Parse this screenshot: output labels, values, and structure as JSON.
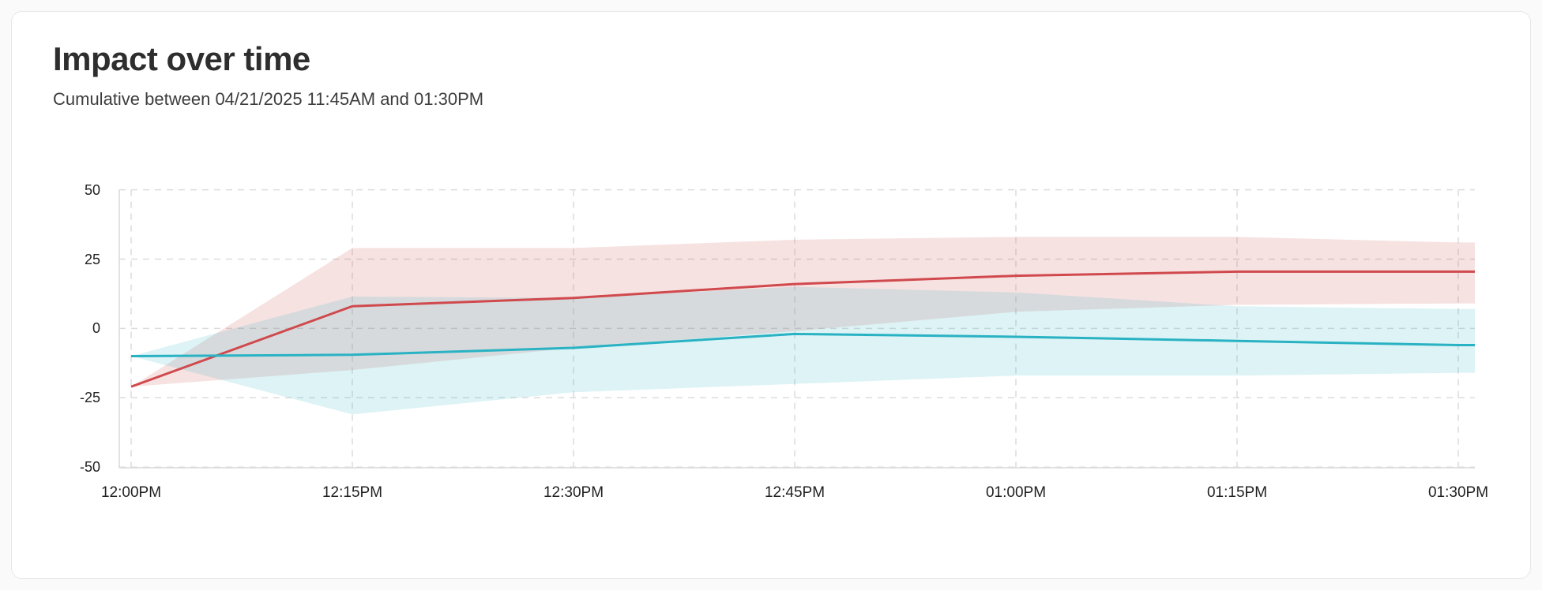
{
  "chart_data": {
    "type": "line",
    "title": "Impact over time",
    "subtitle": "Cumulative between 04/21/2025 11:45AM and 01:30PM",
    "categories": [
      "12:00PM",
      "12:15PM",
      "12:30PM",
      "12:45PM",
      "01:00PM",
      "01:15PM",
      "01:30PM"
    ],
    "y_ticks": [
      50,
      25,
      0,
      -25,
      -50
    ],
    "ylim": [
      -50,
      50
    ],
    "grid": "dashed",
    "legend": "none",
    "grid_color": "#dcdcdc",
    "axis_color": "#d9d9d9",
    "series": [
      {
        "name": "red-series",
        "color": "#d0494d",
        "band_opacity": 0.16,
        "values": [
          -21,
          8,
          11,
          16,
          19,
          20.5,
          20.5
        ],
        "band_low": [
          -21,
          -15,
          -7,
          -1,
          6,
          8.5,
          9
        ],
        "band_high": [
          -21,
          29,
          29,
          32,
          33,
          33,
          31
        ]
      },
      {
        "name": "cyan-series",
        "color": "#29b2c3",
        "band_opacity": 0.16,
        "values": [
          -10,
          -9.5,
          -7,
          -2,
          -3,
          -4.5,
          -6
        ],
        "band_low": [
          -10,
          -31,
          -23,
          -20,
          -17,
          -17,
          -16
        ],
        "band_high": [
          -10,
          11.5,
          11,
          15,
          13,
          8,
          7
        ]
      }
    ]
  }
}
